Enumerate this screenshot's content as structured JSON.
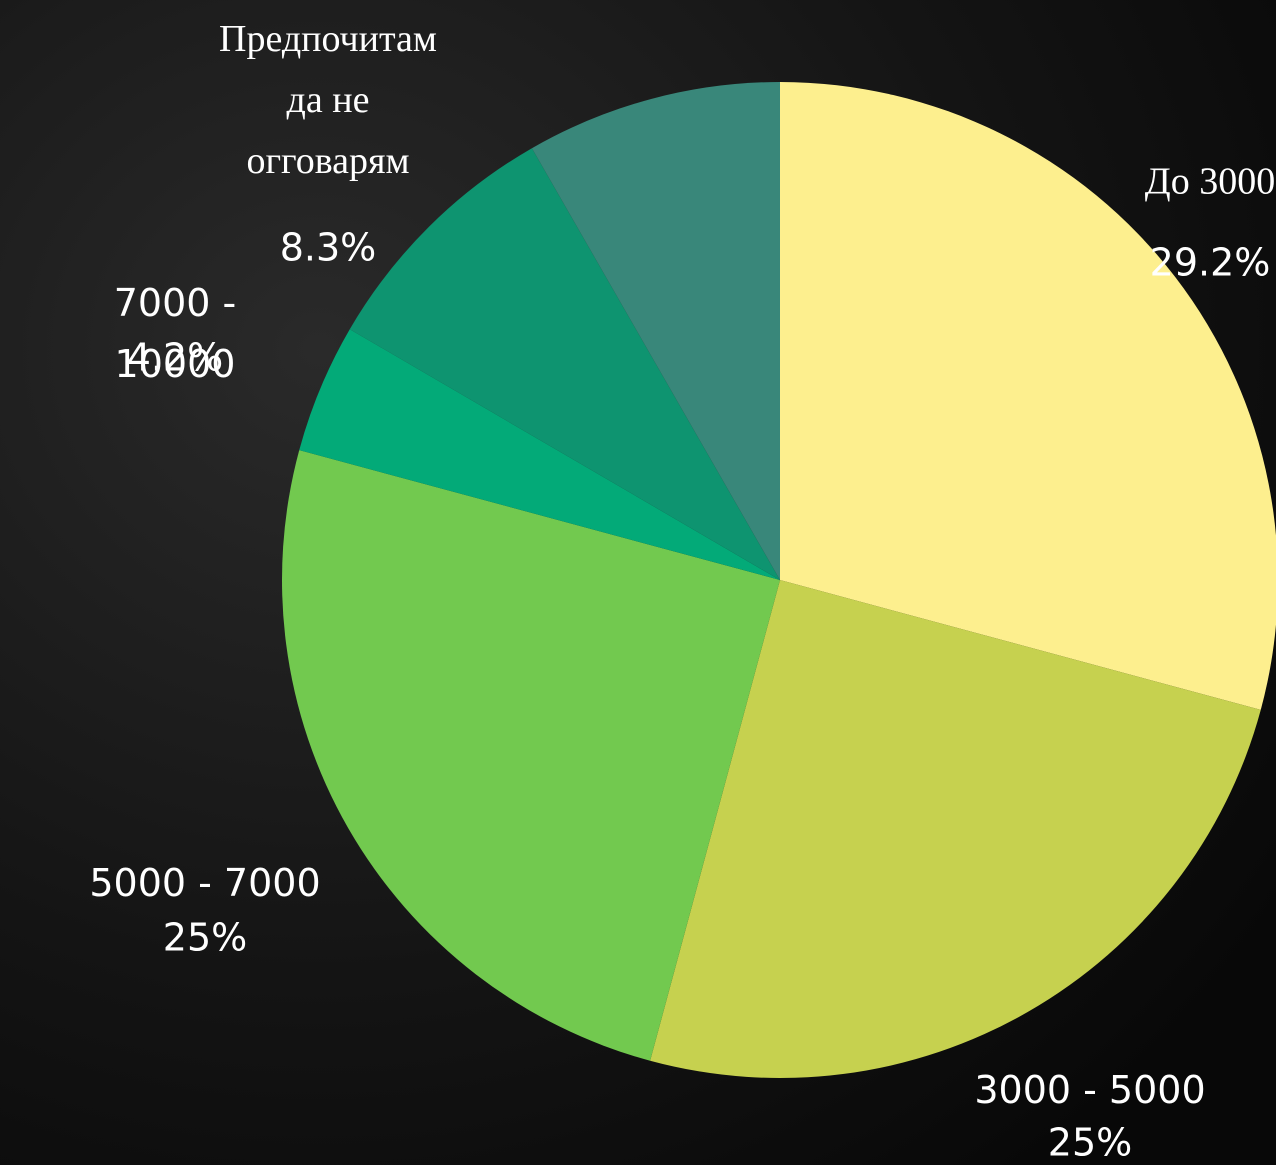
{
  "chart_data": {
    "type": "pie",
    "categories": [
      "До 3000",
      "3000 - 5000",
      "5000 - 7000",
      "7000 - 10000",
      null,
      "Предпочитам да не огговарям"
    ],
    "values": [
      29.2,
      25,
      25,
      4.2,
      8.3,
      8.3
    ],
    "value_labels": [
      "29.2%",
      "25%",
      "25%",
      "4.2%",
      null,
      "8.3%"
    ],
    "colors": [
      "#fdef8e",
      "#c6d14f",
      "#72c94f",
      "#03aa78",
      "#0e9470",
      "#39877a"
    ]
  }
}
